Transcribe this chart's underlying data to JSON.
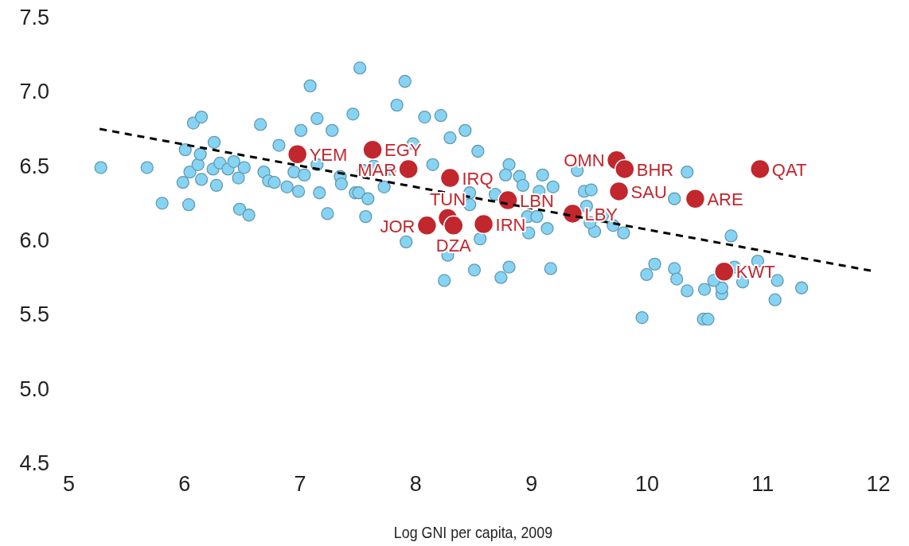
{
  "chart_data": {
    "type": "scatter",
    "xlabel": "Log GNI per capita, 2009",
    "xlim": [
      5,
      12
    ],
    "xticks": [
      5,
      6,
      7,
      8,
      9,
      10,
      11,
      12
    ],
    "ylim": [
      4.5,
      7.5
    ],
    "yticks": [
      {
        "value": 4.5,
        "label": "4.5"
      },
      {
        "value": 5,
        "label": "5.0"
      },
      {
        "value": 5.5,
        "label": "5.5"
      },
      {
        "value": 6,
        "label": "6.0"
      },
      {
        "value": 6.5,
        "label": "6.5"
      },
      {
        "value": 7,
        "label": "7.0"
      },
      {
        "value": 7.5,
        "label": "7.5"
      }
    ],
    "series": [
      {
        "marker": "circle",
        "color": "#87d3f3",
        "x": [
          5.28,
          5.68,
          6.08,
          6.15,
          5.81,
          6.04,
          5.99,
          6.01,
          6.05,
          6.12,
          6.14,
          6.15,
          6.26,
          6.25,
          6.28,
          6.31,
          6.38,
          6.43,
          6.47,
          6.52,
          6.48,
          6.56,
          6.66,
          6.69,
          6.73,
          6.78,
          6.82,
          6.89,
          6.95,
          6.99,
          7.01,
          7.04,
          7.09,
          7.15,
          7.15,
          7.17,
          7.24,
          7.28,
          7.35,
          7.36,
          7.46,
          7.52,
          7.48,
          7.91,
          7.84,
          8.08,
          8.22,
          8.3,
          8.43,
          7.98,
          8.54,
          8.15,
          7.78,
          7.55,
          7.64,
          7.73,
          7.51,
          7.59,
          7.57,
          8.47,
          8.47,
          8.69,
          8.81,
          8.78,
          8.9,
          8.93,
          9.1,
          9.19,
          9.07,
          8.97,
          9.14,
          8.98,
          9.05,
          8.56,
          7.92,
          8.28,
          8.25,
          8.51,
          8.74,
          8.81,
          9.17,
          9.4,
          9.46,
          9.52,
          9.48,
          9.62,
          9.71,
          9.8,
          9.55,
          9.51,
          10.35,
          10.24,
          10.73,
          10.07,
          10.0,
          10.24,
          10.26,
          10.35,
          10.5,
          10.65,
          10.65,
          10.58,
          10.76,
          10.96,
          10.83,
          11.13,
          11.34,
          11.11,
          9.96,
          10.49,
          10.53
        ],
        "values": [
          6.49,
          6.49,
          6.79,
          6.83,
          6.25,
          6.24,
          6.39,
          6.61,
          6.46,
          6.51,
          6.58,
          6.41,
          6.66,
          6.48,
          6.37,
          6.52,
          6.48,
          6.53,
          6.42,
          6.49,
          6.21,
          6.17,
          6.78,
          6.46,
          6.4,
          6.39,
          6.64,
          6.36,
          6.46,
          6.33,
          6.74,
          6.44,
          7.04,
          6.82,
          6.51,
          6.32,
          6.18,
          6.74,
          6.43,
          6.38,
          6.85,
          7.16,
          6.32,
          7.07,
          6.91,
          6.83,
          6.84,
          6.69,
          6.74,
          6.65,
          6.6,
          6.51,
          6.48,
          6.47,
          6.5,
          6.36,
          6.32,
          6.28,
          6.16,
          6.32,
          6.24,
          6.31,
          6.51,
          6.44,
          6.43,
          6.37,
          6.44,
          6.36,
          6.33,
          6.16,
          6.08,
          6.05,
          6.16,
          6.01,
          5.99,
          5.9,
          5.73,
          5.8,
          5.75,
          5.82,
          5.81,
          6.47,
          6.33,
          6.34,
          6.23,
          6.17,
          6.1,
          6.05,
          6.06,
          6.12,
          6.46,
          6.28,
          6.03,
          5.84,
          5.77,
          5.81,
          5.74,
          5.66,
          5.67,
          5.64,
          5.68,
          5.73,
          5.82,
          5.86,
          5.72,
          5.73,
          5.68,
          5.6,
          5.48,
          5.47,
          5.47
        ]
      },
      {
        "marker": "circle",
        "color": "#c1272d",
        "x": [
          6.98,
          7.63,
          7.94,
          8.3,
          8.1,
          8.28,
          8.33,
          8.59,
          8.8,
          9.36,
          9.74,
          9.81,
          9.76,
          10.42,
          10.98,
          10.67
        ],
        "values": [
          6.58,
          6.61,
          6.48,
          6.42,
          6.1,
          6.15,
          6.1,
          6.11,
          6.27,
          6.18,
          6.54,
          6.48,
          6.33,
          6.28,
          6.48,
          5.79
        ]
      },
      {
        "type": "line",
        "color": "#000000",
        "line_style": "dashed",
        "x": [
          5.27,
          11.98
        ],
        "values": [
          6.75,
          5.79
        ]
      }
    ],
    "annotations": [
      {
        "text": "YEM",
        "x": 6.98,
        "y": 6.58
      },
      {
        "text": "EGY",
        "x": 7.63,
        "y": 6.61
      },
      {
        "text": "MAR",
        "x": 7.94,
        "y": 6.48
      },
      {
        "text": "IRQ",
        "x": 8.3,
        "y": 6.42
      },
      {
        "text": "JOR",
        "x": 8.1,
        "y": 6.1
      },
      {
        "text": "TUN",
        "x": 8.28,
        "y": 6.15
      },
      {
        "text": "DZA",
        "x": 8.33,
        "y": 6.1
      },
      {
        "text": "IRN",
        "x": 8.59,
        "y": 6.11
      },
      {
        "text": "LBN",
        "x": 8.8,
        "y": 6.27
      },
      {
        "text": "LBY",
        "x": 9.36,
        "y": 6.18
      },
      {
        "text": "OMN",
        "x": 9.74,
        "y": 6.54
      },
      {
        "text": "BHR",
        "x": 9.81,
        "y": 6.48
      },
      {
        "text": "SAU",
        "x": 9.76,
        "y": 6.33
      },
      {
        "text": "ARE",
        "x": 10.42,
        "y": 6.28
      },
      {
        "text": "QAT",
        "x": 10.98,
        "y": 6.48
      },
      {
        "text": "KWT",
        "x": 10.67,
        "y": 5.79
      }
    ]
  }
}
